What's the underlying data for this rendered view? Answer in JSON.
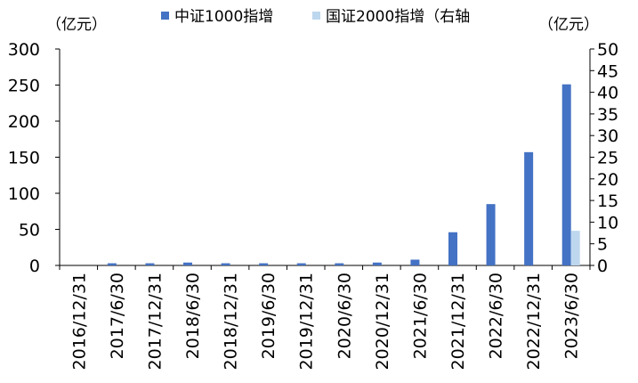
{
  "chart_data": {
    "type": "bar",
    "categories": [
      "2016/12/31",
      "2017/6/30",
      "2017/12/31",
      "2018/6/30",
      "2018/12/31",
      "2019/6/30",
      "2019/12/31",
      "2020/6/30",
      "2020/12/31",
      "2021/6/30",
      "2021/12/31",
      "2022/6/30",
      "2022/12/31",
      "2023/6/30"
    ],
    "series": [
      {
        "name": "中证1000指增",
        "axis": "left",
        "color": "#4472C4",
        "values": [
          0,
          3,
          3,
          4,
          3,
          3,
          3,
          3,
          4,
          8,
          46,
          85,
          157,
          251
        ]
      },
      {
        "name": "国证2000指增（右轴",
        "axis": "right",
        "color": "#BDD7EE",
        "values": [
          0,
          0,
          0,
          0,
          0,
          0,
          0,
          0,
          0,
          0,
          0,
          0,
          0,
          8
        ]
      }
    ],
    "ylabel_left": "（亿元）",
    "ylabel_right": "（亿元）",
    "ylim_left": [
      0,
      300
    ],
    "ylim_right": [
      0,
      50
    ],
    "yticks_left": [
      "0",
      "50",
      "100",
      "150",
      "200",
      "250",
      "300"
    ],
    "yticks_right": [
      "0",
      "5",
      "10",
      "15",
      "20",
      "25",
      "30",
      "35",
      "40",
      "45",
      "50"
    ],
    "legend_position": "top-center",
    "grid": false
  }
}
